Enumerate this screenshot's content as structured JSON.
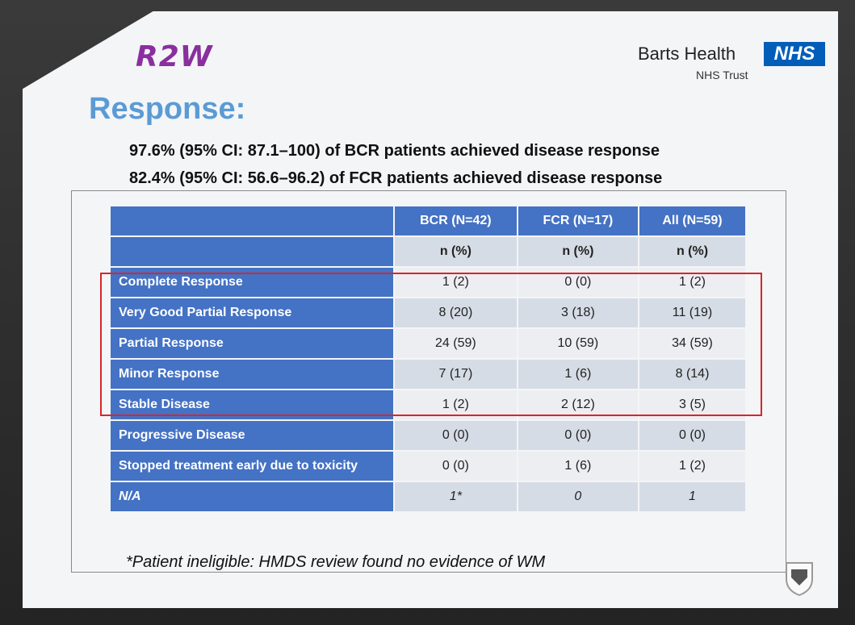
{
  "header": {
    "logo_text": "R2W",
    "org_name": "Barts Health",
    "nhs_badge": "NHS",
    "org_sub": "NHS Trust"
  },
  "title": "Response:",
  "stats": [
    "97.6% (95% CI: 87.1–100) of BCR patients achieved disease response",
    "82.4% (95% CI: 56.6–96.2) of FCR patients achieved disease response"
  ],
  "table": {
    "columns": [
      "BCR (N=42)",
      "FCR (N=17)",
      "All (N=59)"
    ],
    "subheaders": [
      "n (%)",
      "n (%)",
      "n (%)"
    ],
    "rows": [
      {
        "label": "Complete Response",
        "values": [
          "1 (2)",
          "0 (0)",
          "1 (2)"
        ]
      },
      {
        "label": "Very Good Partial Response",
        "values": [
          "8 (20)",
          "3 (18)",
          "11 (19)"
        ]
      },
      {
        "label": "Partial Response",
        "values": [
          "24 (59)",
          "10 (59)",
          "34 (59)"
        ]
      },
      {
        "label": "Minor Response",
        "values": [
          "7 (17)",
          "1 (6)",
          "8 (14)"
        ]
      },
      {
        "label": "Stable Disease",
        "values": [
          "1 (2)",
          "2 (12)",
          "3 (5)"
        ]
      },
      {
        "label": "Progressive Disease",
        "values": [
          "0 (0)",
          "0 (0)",
          "0 (0)"
        ]
      },
      {
        "label": "Stopped treatment early due to toxicity",
        "values": [
          "0 (0)",
          "1 (6)",
          "1 (2)"
        ]
      },
      {
        "label": "N/A",
        "values": [
          "1*",
          "0",
          "1"
        ]
      }
    ]
  },
  "footnote": "*Patient ineligible: HMDS review found no evidence of WM",
  "colors": {
    "header_blue": "#4472c4",
    "title_blue": "#5b9bd5",
    "highlight_red": "#d9252a",
    "logo_purple": "#8a2f9e",
    "nhs_blue": "#005eb8"
  },
  "icons": [
    "shield-logo-icon"
  ]
}
